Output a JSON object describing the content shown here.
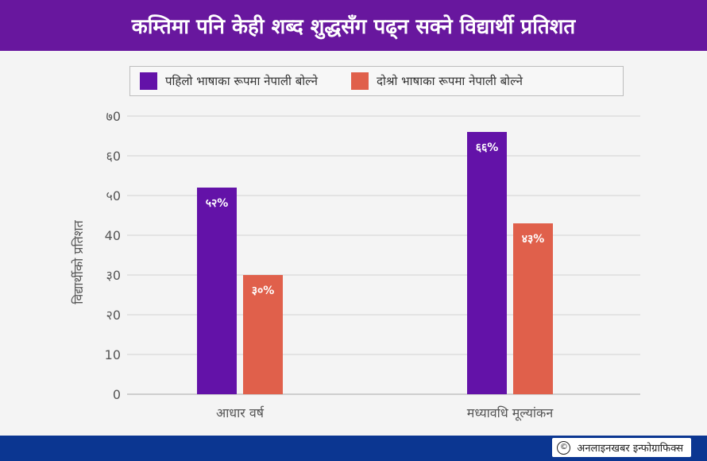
{
  "header": {
    "title": "कम्तिमा पनि केही शब्द शुद्धसँग पढ्न सक्ने विद्यार्थी प्रतिशत"
  },
  "colors": {
    "header_bg": "#68179e",
    "footer_bg": "#0b3691",
    "series_first": "#6312a8",
    "series_second": "#e0604b"
  },
  "chart_data": {
    "type": "bar",
    "title": "कम्तिमा पनि केही शब्द शुद्धसँग पढ्न सक्ने विद्यार्थी प्रतिशत",
    "categories": [
      "आधार वर्ष",
      "मध्यावधि मूल्यांकन"
    ],
    "series": [
      {
        "name": "पहिलो भाषाका रूपमा नेपाली बोल्ने",
        "values": [
          52,
          66
        ],
        "labels": [
          "५२%",
          "६६%"
        ]
      },
      {
        "name": "दोश्रो भाषाका रूपमा नेपाली बोल्ने",
        "values": [
          30,
          43
        ],
        "labels": [
          "३०%",
          "४३%"
        ]
      }
    ],
    "ylabel": "विद्यार्थीको प्रतिशत",
    "xlabel": "",
    "ylim": [
      0,
      70
    ],
    "yticks": [
      0,
      10,
      20,
      30,
      40,
      50,
      60,
      70
    ],
    "ytick_labels": [
      "0",
      "10",
      "२0",
      "३0",
      "40",
      "५0",
      "६0",
      "७0"
    ],
    "grid": true,
    "legend_position": "top"
  },
  "footer": {
    "credit": "अनलाइनखबर इन्फोग्राफिक्स",
    "credit_icon": "copyright-icon"
  }
}
